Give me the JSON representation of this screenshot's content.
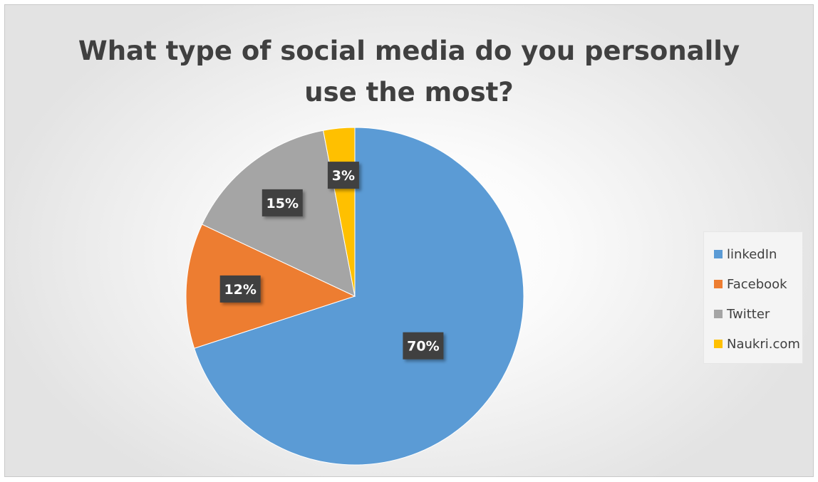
{
  "chart_data": {
    "type": "pie",
    "title_lines": [
      "What type of social media do you personally",
      "use the most?"
    ],
    "categories": [
      "linkedIn",
      "Facebook",
      "Twitter",
      "Naukri.com"
    ],
    "values": [
      70,
      12,
      15,
      3
    ],
    "labels": [
      "70%",
      "12%",
      "15%",
      "3%"
    ],
    "colors": [
      "#5B9BD5",
      "#ED7D31",
      "#A5A5A5",
      "#FFC000"
    ],
    "start_angle_deg": 0,
    "direction": "clockwise",
    "legend_position": "right"
  }
}
